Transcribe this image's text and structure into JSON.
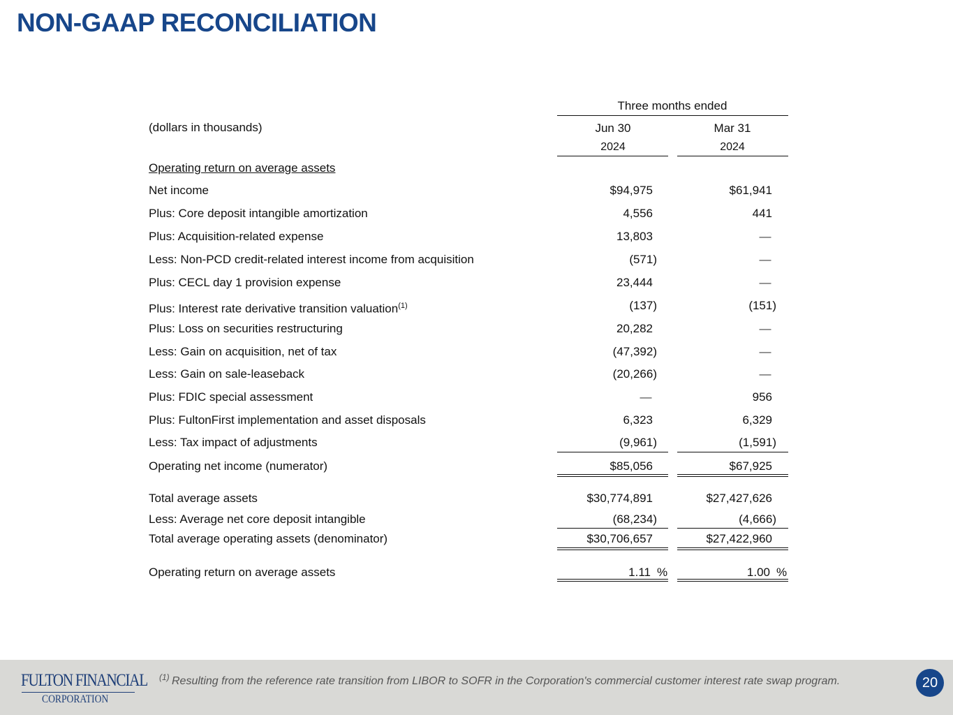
{
  "header": {
    "title": "NON-GAAP RECONCILIATION"
  },
  "table": {
    "group_header": "Three months ended",
    "unit_label": "(dollars in thousands)",
    "columns": [
      {
        "period": "Jun 30",
        "year": "2024"
      },
      {
        "period": "Mar 31",
        "year": "2024"
      }
    ],
    "section_title": "Operating return on average assets",
    "rows": [
      {
        "label": "Net income",
        "values": [
          "$94,975",
          "$61,941"
        ]
      },
      {
        "label": "Plus: Core deposit intangible amortization",
        "values": [
          "4,556",
          "441"
        ]
      },
      {
        "label": "Plus: Acquisition-related expense",
        "values": [
          "13,803",
          "—"
        ]
      },
      {
        "label": "Less: Non-PCD credit-related interest income from acquisition",
        "values": [
          "(571)",
          "—"
        ]
      },
      {
        "label": "Plus: CECL day 1 provision expense",
        "values": [
          "23,444",
          "—"
        ]
      },
      {
        "label": "Plus: Interest rate derivative transition valuation",
        "note": "(1)",
        "values": [
          "(137)",
          "(151)"
        ]
      },
      {
        "label": "Plus: Loss on securities restructuring",
        "values": [
          "20,282",
          "—"
        ]
      },
      {
        "label": "Less: Gain on acquisition, net of tax",
        "values": [
          "(47,392)",
          "—"
        ]
      },
      {
        "label": "Less: Gain on sale-leaseback",
        "values": [
          "(20,266)",
          "—"
        ]
      },
      {
        "label": "Plus: FDIC special assessment",
        "values": [
          "—",
          "956"
        ]
      },
      {
        "label": "Plus: FultonFirst implementation and asset disposals",
        "values": [
          "6,323",
          "6,329"
        ]
      },
      {
        "label": "Less: Tax impact of adjustments",
        "values": [
          "(9,961)",
          "(1,591)"
        ]
      },
      {
        "label": "Operating net income (numerator)",
        "values": [
          "$85,056",
          "$67,925"
        ]
      },
      {
        "label": "Total average assets",
        "values": [
          "$30,774,891",
          "$27,427,626"
        ]
      },
      {
        "label": "Less: Average net core deposit intangible",
        "values": [
          "(68,234)",
          "(4,666)"
        ]
      },
      {
        "label": "Total average operating assets (denominator)",
        "values": [
          "$30,706,657",
          "$27,422,960"
        ]
      },
      {
        "label": "Operating return on average assets",
        "values": [
          "1.11",
          "1.00"
        ],
        "unit": "%"
      }
    ]
  },
  "footnote": {
    "marker": "(1)",
    "text": "Resulting from the reference rate transition from LIBOR to SOFR in the Corporation's commercial customer interest rate swap program."
  },
  "footer": {
    "logo_line1": "FULTON FINANCIAL",
    "logo_line2": "CORPORATION",
    "page_number": "20"
  }
}
